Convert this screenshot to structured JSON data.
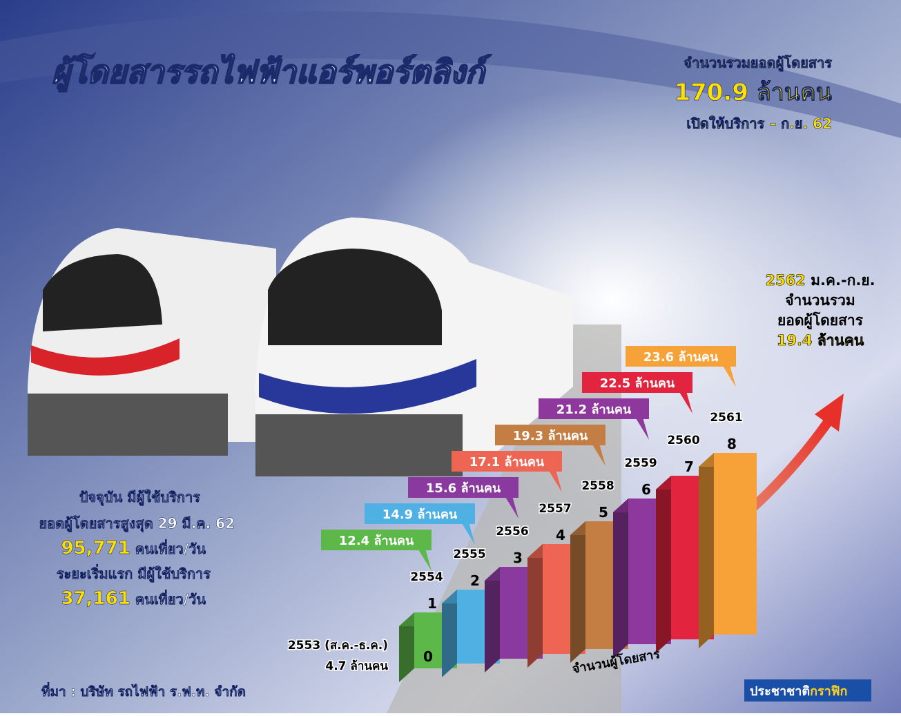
{
  "header": {
    "title": "ผู้โดยสารรถไฟฟ้าแอร์พอร์ตลิงก์"
  },
  "total": {
    "caption": "จำนวนรวมยอดผู้โดยสาร",
    "value": "170.9 ล้านคน",
    "period": "เปิดให้บริการ – ก.ย. 62"
  },
  "current_year": {
    "year": "2562",
    "months": "ม.ค.-ก.ย.",
    "line1": "จำนวนรวม",
    "line2": "ยอดผู้โดยสาร",
    "value": "19.4 ล้านคน"
  },
  "stats": {
    "line1": "ปัจจุบัน มีผู้ใช้บริการ",
    "line2": "ยอดผู้โดยสารสูงสุด 29 มี.ค. 62",
    "peak": "95,771",
    "peak_unit": "คนเที่ยว/วัน",
    "line3": "ระยะเริ่มแรก มีผู้ใช้บริการ",
    "initial": "37,161",
    "initial_unit": "คนเที่ยว/วัน"
  },
  "chart": {
    "axis_label": "จำนวนผู้โดยสาร",
    "years": [
      {
        "year": "2553 (ส.ค.-ธ.ค.)",
        "passengers": "4.7 ล้านคน"
      },
      {
        "year": "2554",
        "passengers": "12.4 ล้านคน",
        "color": "#5cb848"
      },
      {
        "year": "2555",
        "passengers": "14.9 ล้านคน",
        "color": "#4fb0e4"
      },
      {
        "year": "2556",
        "passengers": "15.6 ล้านคน",
        "color": "#8a3a9e"
      },
      {
        "year": "2557",
        "passengers": "17.1 ล้านคน",
        "color": "#ef6553"
      },
      {
        "year": "2558",
        "passengers": "19.3 ล้านคน",
        "color": "#c47d43"
      },
      {
        "year": "2559",
        "passengers": "21.2 ล้านคน",
        "color": "#8e379c"
      },
      {
        "year": "2560",
        "passengers": "22.5 ล้านคน",
        "color": "#e2243f"
      },
      {
        "year": "2561",
        "passengers": "23.6 ล้านคน",
        "color": "#f7a238"
      }
    ],
    "levels": [
      0,
      1,
      2,
      3,
      4,
      5,
      6,
      7,
      8
    ]
  },
  "footer": {
    "source": "ที่มา : บริษัท รถไฟฟ้า ร.ฟ.ท. จำกัด",
    "brand_a": "ประชาชาติ",
    "brand_b": "กราฟิก"
  }
}
